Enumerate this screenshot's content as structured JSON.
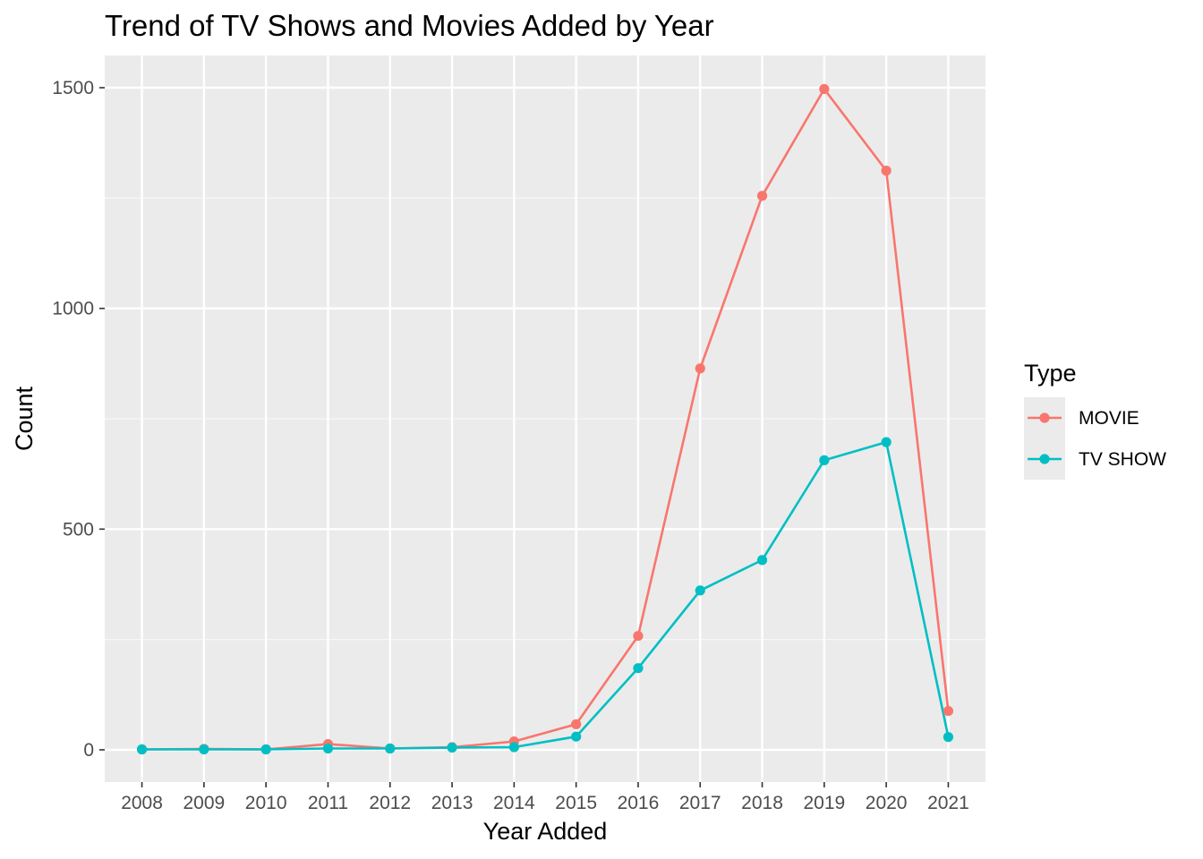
{
  "chart_data": {
    "type": "line",
    "title": "Trend of TV Shows and Movies Added by Year",
    "xlabel": "Year Added",
    "ylabel": "Count",
    "x": [
      2008,
      2009,
      2010,
      2011,
      2012,
      2013,
      2014,
      2015,
      2016,
      2017,
      2018,
      2019,
      2020,
      2021
    ],
    "x_tick_labels": [
      "2008",
      "2009",
      "2010",
      "2011",
      "2012",
      "2013",
      "2014",
      "2015",
      "2016",
      "2017",
      "2018",
      "2019",
      "2020",
      "2021"
    ],
    "y_ticks": [
      0,
      500,
      1000,
      1500
    ],
    "y_tick_labels": [
      "0",
      "500",
      "1000",
      "1500"
    ],
    "ylim": [
      -73,
      1573
    ],
    "grid": true,
    "legend": {
      "title": "Type",
      "position": "right"
    },
    "colors": {
      "panel_background": "#ebebeb",
      "grid_major": "#ffffff",
      "grid_minor": "#f7f7f7"
    },
    "series": [
      {
        "name": "MOVIE",
        "color": "#f8766d",
        "values": [
          1,
          2,
          1,
          13,
          3,
          6,
          19,
          58,
          258,
          864,
          1255,
          1497,
          1312,
          88
        ]
      },
      {
        "name": "TV SHOW",
        "color": "#00bfc4",
        "values": [
          1,
          1,
          1,
          3,
          3,
          5,
          6,
          30,
          185,
          361,
          430,
          656,
          697,
          29
        ]
      }
    ]
  }
}
